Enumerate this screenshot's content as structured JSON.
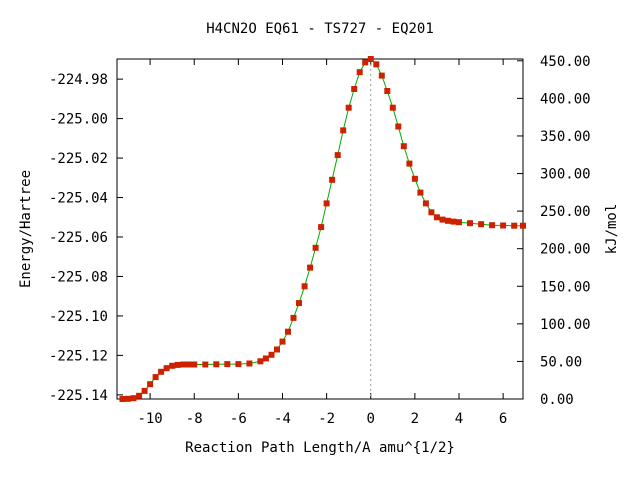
{
  "chart_data": {
    "type": "line",
    "title": "H4CN2O   EQ61 - TS727 - EQ201",
    "xlabel": "Reaction Path Length/A amu^{1/2}",
    "ylabel": "Energy/Hartree",
    "y2label": "kJ/mol",
    "xlim": [
      -11.5,
      6.9
    ],
    "ylim": [
      -225.1421,
      -224.9698
    ],
    "y2lim": [
      0,
      452.4
    ],
    "x_ticks": [
      -10,
      -8,
      -6,
      -4,
      -2,
      0,
      2,
      4,
      6
    ],
    "y_ticks": [
      "-225.14",
      "-225.12",
      "-225.10",
      "-225.08",
      "-225.06",
      "-225.04",
      "-225.02",
      "-225.00",
      "-224.98"
    ],
    "y2_ticks": [
      "0.00",
      "50.00",
      "100.00",
      "150.00",
      "200.00",
      "250.00",
      "300.00",
      "350.00",
      "400.00",
      "450.00"
    ],
    "ts_marker_x": 0,
    "grid": false,
    "legend": "none",
    "colors": {
      "line": "#00aa00",
      "points": "#cc2200",
      "ts_marker": "#999999",
      "axis": "#000000"
    },
    "series": [
      {
        "x": [
          -11.25,
          -11.0,
          -10.75,
          -10.5,
          -10.25,
          -10.0,
          -9.75,
          -9.5,
          -9.25,
          -9.0,
          -8.75,
          -8.5,
          -8.25,
          -8.0,
          -7.5,
          -7.0,
          -6.5,
          -6.0,
          -5.5,
          -5.0,
          -4.75,
          -4.5,
          -4.25,
          -4.0,
          -3.75,
          -3.5,
          -3.25,
          -3.0,
          -2.75,
          -2.5,
          -2.25,
          -2.0,
          -1.75,
          -1.5,
          -1.25,
          -1.0,
          -0.75,
          -0.5,
          -0.25,
          0.0,
          0.25,
          0.5,
          0.75,
          1.0,
          1.25,
          1.5,
          1.75,
          2.0,
          2.25,
          2.5,
          2.75,
          3.0,
          3.25,
          3.5,
          3.75,
          4.0,
          4.5,
          5.0,
          5.5,
          6.0,
          6.5,
          6.9
        ],
        "y": [
          -225.1421,
          -225.142,
          -225.1417,
          -225.1405,
          -225.138,
          -225.1346,
          -225.131,
          -225.1283,
          -225.1265,
          -225.1253,
          -225.1248,
          -225.1246,
          -225.1246,
          -225.1246,
          -225.1246,
          -225.1245,
          -225.1244,
          -225.1244,
          -225.1241,
          -225.123,
          -225.1216,
          -225.1197,
          -225.117,
          -225.113,
          -225.108,
          -225.101,
          -225.0935,
          -225.085,
          -225.0755,
          -225.0655,
          -225.055,
          -225.043,
          -225.031,
          -225.0185,
          -225.006,
          -224.9945,
          -224.985,
          -224.9765,
          -224.9715,
          -224.9698,
          -224.9725,
          -224.9782,
          -224.986,
          -224.9945,
          -225.004,
          -225.014,
          -225.0228,
          -225.0305,
          -225.0375,
          -225.043,
          -225.0475,
          -225.05,
          -225.0512,
          -225.0518,
          -225.0522,
          -225.0525,
          -225.053,
          -225.0535,
          -225.054,
          -225.0542,
          -225.0543,
          -225.0543
        ]
      }
    ]
  }
}
